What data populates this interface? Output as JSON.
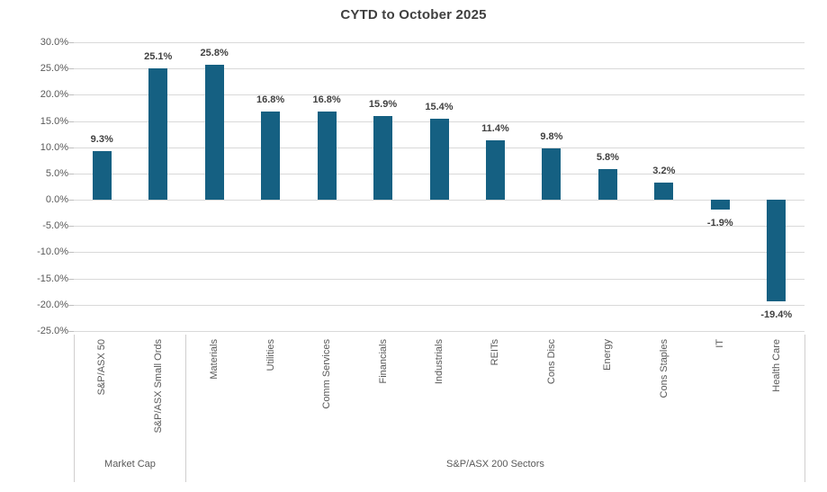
{
  "chart_data": {
    "type": "bar",
    "title": "CYTD to October 2025",
    "xlabel": "",
    "ylabel": "",
    "categories": [
      "S&P/ASX 50",
      "S&P/ASX Small Ords",
      "Materials",
      "Utilities",
      "Comm Services",
      "Financials",
      "Industrials",
      "REITs",
      "Cons Disc",
      "Energy",
      "Cons Staples",
      "IT",
      "Health Care"
    ],
    "values": [
      9.3,
      25.1,
      25.8,
      16.8,
      16.8,
      15.9,
      15.4,
      11.4,
      9.8,
      5.8,
      3.2,
      -1.9,
      -19.4
    ],
    "data_labels": [
      "9.3%",
      "25.1%",
      "25.8%",
      "16.8%",
      "16.8%",
      "15.9%",
      "15.4%",
      "11.4%",
      "9.8%",
      "5.8%",
      "3.2%",
      "-1.9%",
      "-19.4%"
    ],
    "category_groups": [
      {
        "label": "Market Cap",
        "span": 2
      },
      {
        "label": "S&P/ASX 200 Sectors",
        "span": 11
      }
    ],
    "y_ticks": [
      {
        "label": "30.0%",
        "value": 30
      },
      {
        "label": "25.0%",
        "value": 25
      },
      {
        "label": "20.0%",
        "value": 20
      },
      {
        "label": "15.0%",
        "value": 15
      },
      {
        "label": "10.0%",
        "value": 10
      },
      {
        "label": "5.0%",
        "value": 5
      },
      {
        "label": "0.0%",
        "value": 0
      },
      {
        "label": "-5.0%",
        "value": -5
      },
      {
        "label": "-10.0%",
        "value": -10
      },
      {
        "label": "-15.0%",
        "value": -15
      },
      {
        "label": "-20.0%",
        "value": -20
      },
      {
        "label": "-25.0%",
        "value": -25
      }
    ],
    "ylim": [
      -25,
      30
    ],
    "grid": true,
    "legend_position": "none",
    "colors": {
      "bar_fill": "#156082",
      "gridline": "#d9d9d9",
      "tick": "#bfbfbf",
      "axis_divider": "#d0cece",
      "title_text": "#404040",
      "data_label_text": "#404040",
      "axis_text": "#595959"
    }
  }
}
